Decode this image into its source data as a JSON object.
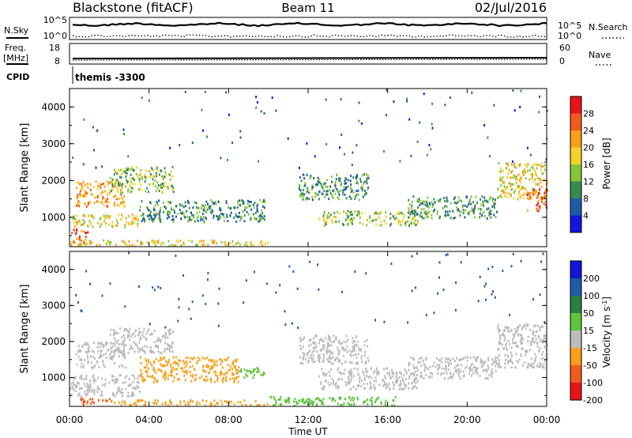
{
  "header": {
    "station": "Blackstone (fitACF)",
    "beam": "Beam 11",
    "date": "02/Jul/2016"
  },
  "noise_panel": {
    "left_label": "N.Sky",
    "right_label": "N.Search",
    "tick_top": "10^5",
    "tick_bottom": "10^0"
  },
  "freq_panel": {
    "left_label": "Freq.",
    "left_unit": "[MHz]",
    "right_label": "Nave",
    "left_ticks": [
      "18",
      "8"
    ],
    "right_ticks": [
      "60",
      "0"
    ]
  },
  "cpid_panel": {
    "label": "CPID",
    "value": "themis -3300"
  },
  "chart_data": [
    {
      "type": "heatmap",
      "name": "power",
      "ylabel": "Slant Range [km]",
      "ylim": [
        200,
        4500
      ],
      "yticks": [
        1000,
        2000,
        3000,
        4000
      ],
      "xlim": [
        0,
        24
      ],
      "colorbar_label": "Power [dB]",
      "colorbar_ticks": [
        "28",
        "24",
        "20",
        "16",
        "12",
        "8",
        "4"
      ],
      "colorbar_colors": [
        "#e8141a",
        "#f05a1e",
        "#f7a11a",
        "#f5d22a",
        "#86c43a",
        "#3a8a50",
        "#1f5aa8",
        "#1414e0"
      ],
      "bands": [
        {
          "t0": 0.0,
          "t1": 1.0,
          "r0": 300,
          "r1": 700,
          "level": 6
        },
        {
          "t0": 0.0,
          "t1": 10.0,
          "r0": 250,
          "r1": 400,
          "level": 4
        },
        {
          "t0": 0.1,
          "t1": 3.5,
          "r0": 750,
          "r1": 1100,
          "level": 4
        },
        {
          "t0": 0.3,
          "t1": 2.8,
          "r0": 1300,
          "r1": 2000,
          "level": 5
        },
        {
          "t0": 2.0,
          "t1": 5.2,
          "r0": 1700,
          "r1": 2400,
          "level": 3
        },
        {
          "t0": 3.5,
          "t1": 9.8,
          "r0": 900,
          "r1": 1500,
          "level": 2
        },
        {
          "t0": 11.5,
          "t1": 15.0,
          "r0": 1500,
          "r1": 2200,
          "level": 2
        },
        {
          "t0": 12.5,
          "t1": 17.5,
          "r0": 800,
          "r1": 1200,
          "level": 3
        },
        {
          "t0": 17.0,
          "t1": 21.5,
          "r0": 1000,
          "r1": 1600,
          "level": 2
        },
        {
          "t0": 21.5,
          "t1": 24.0,
          "r0": 1500,
          "r1": 2500,
          "level": 4
        },
        {
          "t0": 23.0,
          "t1": 24.0,
          "r0": 1200,
          "r1": 1800,
          "level": 6
        }
      ]
    },
    {
      "type": "heatmap",
      "name": "velocity",
      "ylabel": "Slant Range [km]",
      "ylim": [
        200,
        4500
      ],
      "yticks": [
        1000,
        2000,
        3000,
        4000
      ],
      "xlim": [
        0,
        24
      ],
      "xlabel": "Time UT",
      "xticks": [
        "00:00",
        "04:00",
        "08:00",
        "12:00",
        "16:00",
        "20:00",
        "00:00"
      ],
      "colorbar_label": "Velocity [m s^-1]",
      "colorbar_ticks": [
        "200",
        "100",
        "50",
        "15",
        "-15",
        "-50",
        "-100",
        "-200"
      ],
      "colorbar_colors": [
        "#1414d8",
        "#1f5aa8",
        "#2a8040",
        "#5ec43a",
        "#bcbcbc",
        "#f7a11a",
        "#f05a1e",
        "#e8141a"
      ],
      "bands": [
        {
          "t0": 0.0,
          "t1": 3.5,
          "r0": 500,
          "r1": 1100,
          "color": "#bcbcbc"
        },
        {
          "t0": 0.3,
          "t1": 2.8,
          "r0": 1300,
          "r1": 2000,
          "color": "#bcbcbc"
        },
        {
          "t0": 2.0,
          "t1": 5.2,
          "r0": 1700,
          "r1": 2400,
          "color": "#bcbcbc"
        },
        {
          "t0": 3.5,
          "t1": 8.5,
          "r0": 900,
          "r1": 1600,
          "color": "#f7a11a"
        },
        {
          "t0": 8.5,
          "t1": 9.8,
          "r0": 1000,
          "r1": 1300,
          "color": "#5ec43a"
        },
        {
          "t0": 0.5,
          "t1": 2.0,
          "r0": 250,
          "r1": 450,
          "color": "#f05a1e"
        },
        {
          "t0": 2.0,
          "t1": 10.0,
          "r0": 250,
          "r1": 400,
          "color": "#f7a11a"
        },
        {
          "t0": 10.0,
          "t1": 16.5,
          "r0": 250,
          "r1": 500,
          "color": "#5ec43a"
        },
        {
          "t0": 11.5,
          "t1": 15.0,
          "r0": 1400,
          "r1": 2200,
          "color": "#bcbcbc"
        },
        {
          "t0": 12.5,
          "t1": 17.5,
          "r0": 700,
          "r1": 1300,
          "color": "#bcbcbc"
        },
        {
          "t0": 17.0,
          "t1": 21.5,
          "r0": 1000,
          "r1": 1600,
          "color": "#bcbcbc"
        },
        {
          "t0": 21.5,
          "t1": 24.0,
          "r0": 1300,
          "r1": 2500,
          "color": "#bcbcbc"
        }
      ]
    }
  ]
}
